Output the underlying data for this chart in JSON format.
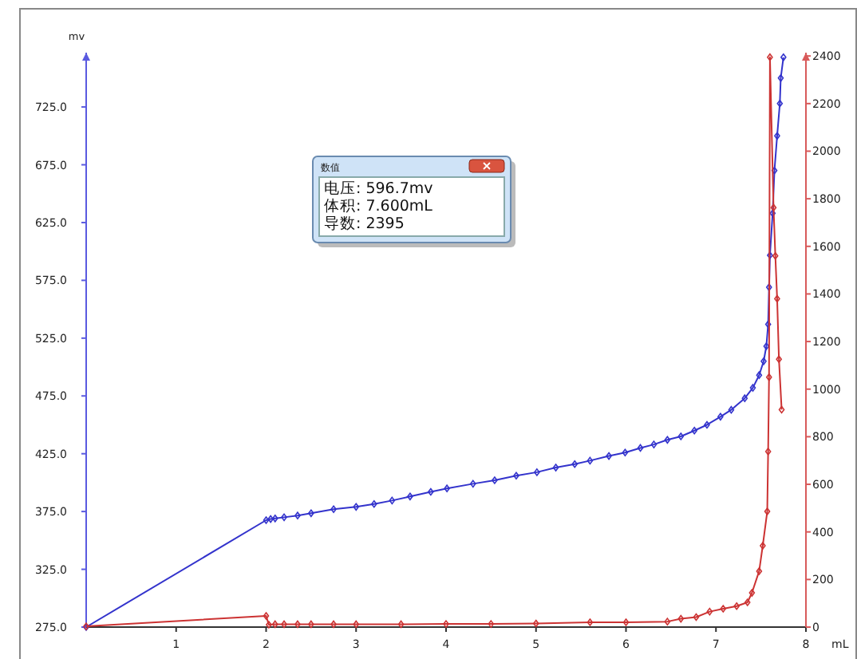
{
  "chart_data": {
    "type": "line",
    "xlabel": "mL",
    "ylabel": "mv",
    "annotations": [
      "数值",
      "电压: 596.7mv",
      "体积: 7.600mL",
      "导数: 2395"
    ],
    "marker": "diamond",
    "xlim": [
      0,
      8
    ],
    "xticks": [
      1,
      2,
      3,
      4,
      5,
      6,
      7,
      8
    ],
    "ylim": [
      275,
      772
    ],
    "yticks": [
      {
        "value": 275,
        "label": "275.0"
      },
      {
        "value": 325,
        "label": "325.0"
      },
      {
        "value": 375,
        "label": "375.0"
      },
      {
        "value": 425,
        "label": "425.0"
      },
      {
        "value": 475,
        "label": "475.0"
      },
      {
        "value": 525,
        "label": "525.0"
      },
      {
        "value": 575,
        "label": "575.0"
      },
      {
        "value": 625,
        "label": "625.0"
      },
      {
        "value": 675,
        "label": "675.0"
      },
      {
        "value": 725,
        "label": "725.0"
      }
    ],
    "y2lim": [
      0,
      2414
    ],
    "y2ticks": [
      0,
      200,
      400,
      600,
      800,
      1000,
      1200,
      1400,
      1600,
      1800,
      2000,
      2200,
      2400
    ],
    "series": [
      {
        "color": "#3333cc",
        "x": [
          0,
          2.0,
          2.05,
          2.1,
          2.2,
          2.35,
          2.5,
          2.75,
          3.0,
          3.2,
          3.4,
          3.6,
          3.83,
          4.01,
          4.3,
          4.54,
          4.78,
          5.01,
          5.22,
          5.43,
          5.6,
          5.81,
          5.99,
          6.16,
          6.31,
          6.46,
          6.61,
          6.76,
          6.9,
          7.05,
          7.17,
          7.32,
          7.41,
          7.48,
          7.53,
          7.56,
          7.58,
          7.59,
          7.6,
          7.63,
          7.65,
          7.68,
          7.71,
          7.72,
          7.75
        ],
        "values": [
          275,
          367.5,
          368.5,
          369,
          370,
          371.5,
          373.5,
          377,
          379,
          381.5,
          384.5,
          388,
          392,
          395,
          399,
          402,
          406,
          409,
          413,
          416,
          419,
          423,
          426,
          430,
          433,
          437,
          440,
          445,
          450,
          457,
          463,
          473,
          482,
          493,
          505,
          518,
          537,
          569,
          596.7,
          633,
          670,
          700,
          728,
          750,
          768
        ]
      },
      {
        "color": "#cc3333",
        "axis": "y2",
        "x": [
          0,
          2.0,
          2.03,
          2.1,
          2.2,
          2.35,
          2.5,
          2.75,
          3.0,
          3.5,
          4.0,
          4.5,
          5.0,
          5.6,
          6.0,
          6.46,
          6.61,
          6.78,
          6.93,
          7.08,
          7.23,
          7.35,
          7.4,
          7.48,
          7.52,
          7.57,
          7.58,
          7.59,
          7.6,
          7.64,
          7.66,
          7.68,
          7.7,
          7.73
        ],
        "values": [
          3,
          47,
          10,
          12,
          12,
          12,
          12,
          12,
          12,
          12,
          13,
          13,
          15,
          20,
          20,
          23,
          35,
          42,
          65,
          77,
          88,
          104,
          144,
          235,
          342,
          486,
          738,
          1050,
          2395,
          1763,
          1560,
          1380,
          1126,
          914
        ]
      }
    ]
  }
}
